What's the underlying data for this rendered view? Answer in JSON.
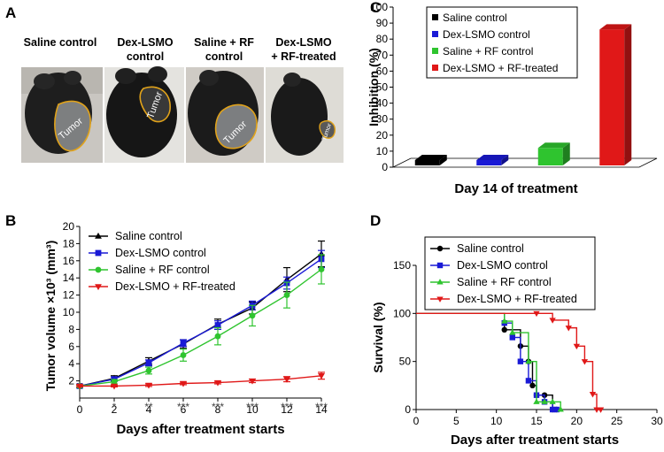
{
  "panels": {
    "A": {
      "letter": "A",
      "photo_labels": [
        [
          "Saline control"
        ],
        [
          "Dex-LSMO",
          "control"
        ],
        [
          "Saline + RF",
          "control"
        ],
        [
          "Dex-LSMO",
          "+ RF-treated"
        ]
      ],
      "tumor_label": "Tumor"
    },
    "B": {
      "letter": "B"
    },
    "C": {
      "letter": "C"
    },
    "D": {
      "letter": "D"
    }
  },
  "colors": {
    "saline": "#000000",
    "dex": "#1a1ad6",
    "saline_rf": "#2fc42f",
    "dex_rf": "#e01818",
    "tumor_outline": "#e0a21a"
  },
  "chart_data": [
    {
      "id": "C",
      "type": "bar",
      "title": "",
      "xlabel": "Day 14 of treatment",
      "ylabel": "Inhibition (%)",
      "ylim": [
        0,
        100
      ],
      "yticks": [
        0,
        10,
        20,
        30,
        40,
        50,
        60,
        70,
        80,
        90,
        100
      ],
      "legend_position": "top-left",
      "series": [
        {
          "name": "Saline control",
          "value": 0,
          "color": "#000000"
        },
        {
          "name": "Dex-LSMO control",
          "value": 3,
          "color": "#1a1ad6"
        },
        {
          "name": "Saline + RF control",
          "value": 12,
          "color": "#2fc42f"
        },
        {
          "name": "Dex-LSMO + RF-treated",
          "value": 86,
          "color": "#e01818"
        }
      ]
    },
    {
      "id": "B",
      "type": "line",
      "xlabel": "Days after treatment starts",
      "ylabel": "Tumor volume ×10³ (mm³)",
      "xlim": [
        0,
        14
      ],
      "ylim": [
        0,
        20
      ],
      "xticks": [
        0,
        2,
        4,
        6,
        8,
        10,
        12,
        14
      ],
      "yticks": [
        2,
        4,
        6,
        8,
        10,
        12,
        14,
        16,
        18,
        20
      ],
      "x": [
        0,
        2,
        4,
        6,
        8,
        10,
        12,
        14
      ],
      "legend_position": "top-left",
      "series": [
        {
          "name": "Saline control",
          "marker": "triangle-up",
          "color": "#000000",
          "values": [
            1.4,
            2.3,
            4.3,
            6.3,
            8.6,
            10.5,
            13.8,
            16.8
          ],
          "errors": [
            0.15,
            0.3,
            0.4,
            0.5,
            0.6,
            0.7,
            1.4,
            1.5
          ]
        },
        {
          "name": "Dex-LSMO control",
          "marker": "square",
          "color": "#1a1ad6",
          "values": [
            1.4,
            2.2,
            4.1,
            6.4,
            8.5,
            10.8,
            13.4,
            16.2
          ],
          "errors": [
            0.15,
            0.25,
            0.35,
            0.4,
            0.5,
            0.5,
            0.7,
            1.0
          ]
        },
        {
          "name": "Saline + RF control",
          "marker": "circle",
          "color": "#2fc42f",
          "values": [
            1.4,
            1.9,
            3.2,
            5.0,
            7.2,
            9.6,
            12.0,
            15.0
          ],
          "errors": [
            0.15,
            0.25,
            0.4,
            0.7,
            1.0,
            1.2,
            1.5,
            1.7
          ]
        },
        {
          "name": "Dex-LSMO + RF-treated",
          "marker": "triangle-down",
          "color": "#e01818",
          "values": [
            1.4,
            1.4,
            1.5,
            1.7,
            1.8,
            2.0,
            2.2,
            2.6
          ],
          "errors": [
            0.1,
            0.1,
            0.15,
            0.15,
            0.15,
            0.2,
            0.3,
            0.4
          ]
        }
      ],
      "annotations": [
        {
          "x": 2,
          "text": "*"
        },
        {
          "x": 4,
          "text": "**"
        },
        {
          "x": 6,
          "text": "***"
        },
        {
          "x": 8,
          "text": "***"
        },
        {
          "x": 10,
          "text": "***"
        },
        {
          "x": 12,
          "text": "***"
        },
        {
          "x": 14,
          "text": "***"
        }
      ]
    },
    {
      "id": "D",
      "type": "line",
      "subtype": "step-survival",
      "xlabel": "Days after treatment starts",
      "ylabel": "Survival (%)",
      "xlim": [
        0,
        30
      ],
      "ylim": [
        0,
        150
      ],
      "xticks": [
        0,
        5,
        10,
        15,
        20,
        25,
        30
      ],
      "yticks": [
        0,
        50,
        100,
        150
      ],
      "legend_position": "top-left",
      "annotation": {
        "x": 18,
        "y": 103,
        "text": "***"
      },
      "series": [
        {
          "name": "Saline control",
          "marker": "circle",
          "color": "#000000",
          "steps": [
            [
              0,
              100
            ],
            [
              11,
              83
            ],
            [
              13,
              66
            ],
            [
              14,
              50
            ],
            [
              14.5,
              25
            ],
            [
              15,
              15
            ],
            [
              16,
              15
            ],
            [
              17,
              0
            ],
            [
              17.5,
              0
            ]
          ]
        },
        {
          "name": "Dex-LSMO control",
          "marker": "square",
          "color": "#1a1ad6",
          "steps": [
            [
              0,
              100
            ],
            [
              11,
              90
            ],
            [
              12,
              75
            ],
            [
              13,
              50
            ],
            [
              14,
              30
            ],
            [
              15,
              15
            ],
            [
              16,
              8
            ],
            [
              17,
              0
            ],
            [
              17.5,
              0
            ]
          ]
        },
        {
          "name": "Saline + RF control",
          "marker": "triangle-up",
          "color": "#2fc42f",
          "steps": [
            [
              0,
              100
            ],
            [
              11,
              92
            ],
            [
              12,
              80
            ],
            [
              14,
              50
            ],
            [
              15,
              8
            ],
            [
              16,
              8
            ],
            [
              17,
              8
            ],
            [
              18,
              0
            ]
          ]
        },
        {
          "name": "Dex-LSMO + RF-treated",
          "marker": "triangle-down",
          "color": "#e01818",
          "steps": [
            [
              0,
              100
            ],
            [
              15,
              100
            ],
            [
              17,
              93
            ],
            [
              19,
              85
            ],
            [
              20,
              66
            ],
            [
              21,
              50
            ],
            [
              22,
              16
            ],
            [
              22.5,
              0
            ],
            [
              23,
              0
            ]
          ]
        }
      ]
    }
  ]
}
